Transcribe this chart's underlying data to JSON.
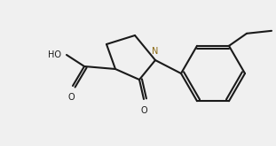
{
  "bond_color": "#1a1a1a",
  "nitrogen_color": "#8B6914",
  "background": "#f0f0f0",
  "bond_width": 1.5,
  "figsize": [
    3.11,
    1.65
  ],
  "dpi": 100,
  "cooh_text": "HO",
  "ketone_text": "O",
  "nitrogen_text": "N"
}
